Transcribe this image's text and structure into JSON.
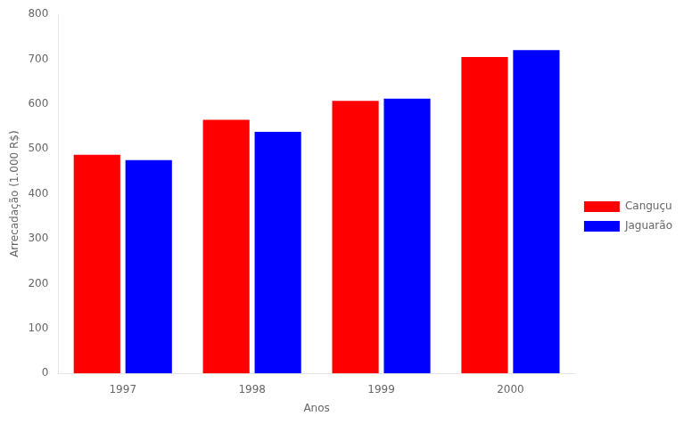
{
  "chart_data": {
    "type": "bar",
    "xlabel": "Anos",
    "ylabel": "Arrecadação (1.000 R$)",
    "categories": [
      "1997",
      "1998",
      "1999",
      "2000"
    ],
    "series": [
      {
        "name": "Canguçu",
        "color": "#ff0000",
        "values": [
          487,
          565,
          607,
          705
        ]
      },
      {
        "name": "Jaguarão",
        "color": "#0000ff",
        "values": [
          475,
          538,
          612,
          720
        ]
      }
    ],
    "ylim": [
      0,
      800
    ],
    "yticks": [
      0,
      100,
      200,
      300,
      400,
      500,
      600,
      700,
      800
    ],
    "grid": false,
    "legend": "right"
  }
}
